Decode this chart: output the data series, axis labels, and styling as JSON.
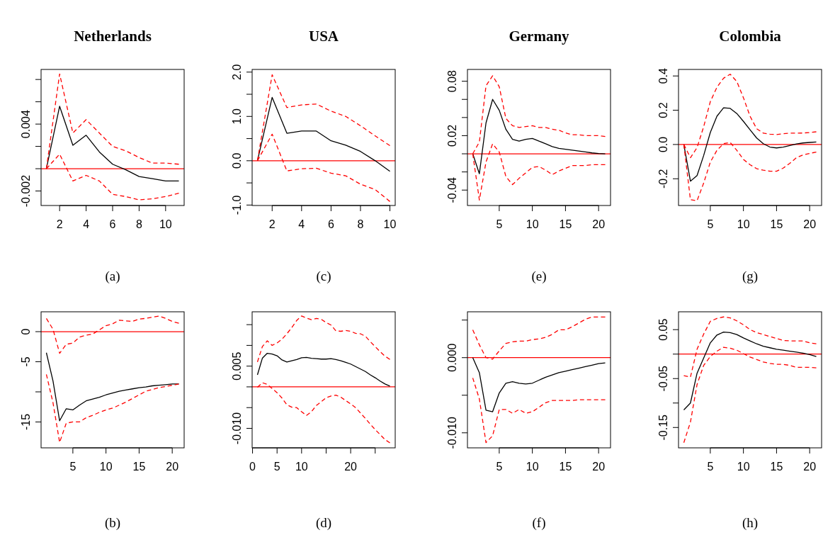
{
  "chart_data": [
    {
      "type": "line",
      "title": "Netherlands",
      "annotations": [
        "(a)"
      ],
      "x": [
        1,
        2,
        3,
        4,
        5,
        6,
        7,
        8,
        9,
        10,
        11
      ],
      "xlim": [
        0.6,
        11.4
      ],
      "xticks": [
        2,
        4,
        6,
        8,
        10
      ],
      "ylim": [
        -0.0033,
        0.0089
      ],
      "yticks": [
        {
          "value": -0.002,
          "label": "-0.002"
        },
        {
          "value": 0,
          "label": null
        },
        {
          "value": 0.002,
          "label": null
        },
        0.004,
        {
          "value": 0.006,
          "label": null
        },
        {
          "value": 0.008,
          "label": null
        }
      ],
      "ref_lines": [
        {
          "axis": "y",
          "value": 0,
          "color": "#ff0000"
        }
      ],
      "series": [
        {
          "color": "#000000",
          "line_style": "solid",
          "values": [
            0,
            0.0056,
            0.0021,
            0.003,
            0.0015,
            0.0004,
            -0.0001,
            -0.0007,
            -0.0009,
            -0.0011,
            -0.0011
          ]
        },
        {
          "color": "#ff0000",
          "line_style": "dashed",
          "values": [
            0,
            0.0085,
            0.0032,
            0.0044,
            0.0032,
            0.002,
            0.0016,
            0.001,
            0.0005,
            0.0005,
            0.0004
          ]
        },
        {
          "color": "#ff0000",
          "line_style": "dashed",
          "values": [
            0,
            0.0013,
            -0.0011,
            -0.0006,
            -0.0011,
            -0.0023,
            -0.0025,
            -0.0028,
            -0.0027,
            -0.0025,
            -0.0022
          ]
        }
      ]
    },
    {
      "type": "line",
      "title": "USA",
      "annotations": [
        "(c)"
      ],
      "x": [
        1,
        2,
        3,
        4,
        5,
        6,
        7,
        8,
        9,
        10
      ],
      "xlim": [
        0.64,
        10.36
      ],
      "xticks": [
        2,
        4,
        6,
        8,
        10
      ],
      "ylim": [
        -1.01,
        2.06
      ],
      "yticks": [
        {
          "value": -1,
          "label": "-1.0"
        },
        {
          "value": -0.5,
          "label": null
        },
        {
          "value": 0,
          "label": "0.0"
        },
        {
          "value": 0.5,
          "label": null
        },
        {
          "value": 1,
          "label": "1.0"
        },
        {
          "value": 1.5,
          "label": null
        },
        {
          "value": 2,
          "label": "2.0"
        }
      ],
      "ref_lines": [
        {
          "axis": "y",
          "value": 0,
          "color": "#ff0000"
        }
      ],
      "series": [
        {
          "color": "#000000",
          "line_style": "solid",
          "values": [
            0,
            1.43,
            0.62,
            0.67,
            0.67,
            0.45,
            0.35,
            0.21,
            0.0,
            -0.24
          ]
        },
        {
          "color": "#ff0000",
          "line_style": "dashed",
          "values": [
            0,
            1.94,
            1.2,
            1.26,
            1.28,
            1.12,
            1.0,
            0.79,
            0.56,
            0.34
          ]
        },
        {
          "color": "#ff0000",
          "line_style": "dashed",
          "values": [
            0,
            0.6,
            -0.23,
            -0.18,
            -0.17,
            -0.28,
            -0.34,
            -0.53,
            -0.65,
            -0.92
          ]
        }
      ]
    },
    {
      "type": "line",
      "title": "Germany",
      "annotations": [
        "(e)"
      ],
      "x": [
        1,
        2,
        3,
        4,
        5,
        6,
        7,
        8,
        9,
        10,
        11,
        12,
        13,
        14,
        15,
        16,
        17,
        18,
        19,
        20,
        21
      ],
      "xlim": [
        0.2,
        21.8
      ],
      "xticks": [
        5,
        10,
        15,
        20
      ],
      "ylim": [
        -0.057,
        0.093
      ],
      "yticks": [
        {
          "value": -0.04,
          "label": "-0.04"
        },
        {
          "value": -0.02,
          "label": null
        },
        {
          "value": 0,
          "label": null
        },
        0.02,
        {
          "value": 0.04,
          "label": null
        },
        {
          "value": 0.06,
          "label": null
        },
        0.08
      ],
      "ref_lines": [
        {
          "axis": "y",
          "value": 0,
          "color": "#ff0000"
        }
      ],
      "series": [
        {
          "color": "#000000",
          "line_style": "solid",
          "values": [
            0,
            -0.022,
            0.034,
            0.06,
            0.048,
            0.027,
            0.016,
            0.014,
            0.016,
            0.017,
            0.014,
            0.011,
            0.008,
            0.006,
            0.005,
            0.004,
            0.003,
            0.002,
            0.001,
            0.0003,
            0
          ]
        },
        {
          "color": "#ff0000",
          "line_style": "dashed",
          "values": [
            0,
            0.013,
            0.075,
            0.086,
            0.074,
            0.039,
            0.031,
            0.029,
            0.03,
            0.031,
            0.029,
            0.029,
            0.027,
            0.026,
            0.023,
            0.021,
            0.021,
            0.02,
            0.02,
            0.02,
            0.019
          ]
        },
        {
          "color": "#ff0000",
          "line_style": "dashed",
          "values": [
            0,
            -0.051,
            -0.009,
            0.011,
            0.002,
            -0.025,
            -0.034,
            -0.027,
            -0.021,
            -0.015,
            -0.014,
            -0.018,
            -0.023,
            -0.019,
            -0.016,
            -0.013,
            -0.013,
            -0.013,
            -0.012,
            -0.012,
            -0.012
          ]
        }
      ]
    },
    {
      "type": "line",
      "title": "Colombia",
      "annotations": [
        "(g)"
      ],
      "x": [
        1,
        2,
        3,
        4,
        5,
        6,
        7,
        8,
        9,
        10,
        11,
        12,
        13,
        14,
        15,
        16,
        17,
        18,
        19,
        20,
        21
      ],
      "xlim": [
        0.2,
        21.8
      ],
      "xticks": [
        5,
        10,
        15,
        20
      ],
      "ylim": [
        -0.356,
        0.438
      ],
      "yticks": [
        -0.2,
        {
          "value": 0,
          "label": "0.0"
        },
        0.2,
        0.4
      ],
      "ref_lines": [
        {
          "axis": "y",
          "value": 0,
          "color": "#ff0000"
        }
      ],
      "series": [
        {
          "color": "#000000",
          "line_style": "solid",
          "values": [
            0,
            -0.214,
            -0.181,
            -0.064,
            0.07,
            0.165,
            0.214,
            0.211,
            0.181,
            0.135,
            0.086,
            0.038,
            0.005,
            -0.015,
            -0.02,
            -0.015,
            -0.006,
            0.003,
            0.009,
            0.012,
            0.015
          ]
        },
        {
          "color": "#ff0000",
          "line_style": "dashed",
          "values": [
            0,
            -0.077,
            -0.018,
            0.104,
            0.25,
            0.334,
            0.387,
            0.41,
            0.368,
            0.273,
            0.165,
            0.092,
            0.066,
            0.06,
            0.058,
            0.063,
            0.066,
            0.066,
            0.067,
            0.07,
            0.074
          ]
        },
        {
          "color": "#ff0000",
          "line_style": "dashed",
          "values": [
            0,
            -0.322,
            -0.328,
            -0.225,
            -0.103,
            -0.034,
            0.005,
            0.012,
            -0.034,
            -0.087,
            -0.118,
            -0.141,
            -0.15,
            -0.156,
            -0.156,
            -0.138,
            -0.11,
            -0.077,
            -0.061,
            -0.052,
            -0.044
          ]
        }
      ]
    },
    {
      "type": "line",
      "annotations": [
        "(b)"
      ],
      "x": [
        1,
        2,
        3,
        4,
        5,
        6,
        7,
        8,
        9,
        10,
        11,
        12,
        13,
        14,
        15,
        16,
        17,
        18,
        19,
        20,
        21
      ],
      "xlim": [
        0.2,
        21.8
      ],
      "xticks": [
        5,
        10,
        15,
        20
      ],
      "ylim": [
        -19.3,
        3.3
      ],
      "yticks": [
        -15,
        {
          "value": -10,
          "label": null
        },
        -5,
        0
      ],
      "ref_lines": [
        {
          "axis": "y",
          "value": 0,
          "color": "#ff0000"
        }
      ],
      "series": [
        {
          "color": "#000000",
          "line_style": "solid",
          "values": [
            -3.5,
            -8.2,
            -14.8,
            -12.8,
            -13.0,
            -12.2,
            -11.5,
            -11.2,
            -10.9,
            -10.5,
            -10.2,
            -9.9,
            -9.7,
            -9.5,
            -9.3,
            -9.2,
            -9.0,
            -8.9,
            -8.8,
            -8.7,
            -8.7
          ]
        },
        {
          "color": "#ff0000",
          "line_style": "dashed",
          "values": [
            2.2,
            0.4,
            -3.6,
            -2.1,
            -1.9,
            -0.9,
            -0.6,
            -0.4,
            0.3,
            1.0,
            1.3,
            1.9,
            1.8,
            1.7,
            2.1,
            2.2,
            2.4,
            2.6,
            2.2,
            1.7,
            1.4
          ]
        },
        {
          "color": "#ff0000",
          "line_style": "dashed",
          "values": [
            -7.1,
            -11.8,
            -18.4,
            -15.2,
            -15.0,
            -15.0,
            -14.3,
            -13.9,
            -13.4,
            -13.0,
            -12.7,
            -12.2,
            -11.7,
            -11.1,
            -10.5,
            -9.9,
            -9.6,
            -9.3,
            -9.1,
            -8.9,
            -8.7
          ]
        }
      ]
    },
    {
      "type": "line",
      "annotations": [
        "(d)"
      ],
      "x": [
        1,
        2,
        3,
        4,
        5,
        6,
        7,
        8,
        9,
        10,
        11,
        12,
        13,
        14,
        15,
        16,
        17,
        18,
        19,
        20,
        21,
        22,
        23,
        24,
        25,
        26,
        27,
        28
      ],
      "xlim": [
        -0.08,
        29.08
      ],
      "xticks": [
        0,
        5,
        10,
        {
          "value": 15,
          "label": null
        },
        20,
        {
          "value": 25,
          "label": null
        }
      ],
      "ylim": [
        -0.0147,
        0.0181
      ],
      "yticks": [
        {
          "value": -0.01,
          "label": "-0.010"
        },
        {
          "value": -0.005,
          "label": null
        },
        {
          "value": 0,
          "label": null
        },
        0.005,
        {
          "value": 0.01,
          "label": null
        },
        {
          "value": 0.015,
          "label": null
        }
      ],
      "ref_lines": [
        {
          "axis": "y",
          "value": 0,
          "color": "#ff0000"
        }
      ],
      "series": [
        {
          "color": "#000000",
          "line_style": "solid",
          "values": [
            0.0029,
            0.0069,
            0.0081,
            0.0079,
            0.0075,
            0.0065,
            0.006,
            0.0063,
            0.0066,
            0.007,
            0.0071,
            0.0069,
            0.0068,
            0.0067,
            0.0067,
            0.0068,
            0.0066,
            0.0063,
            0.0059,
            0.0055,
            0.0049,
            0.0043,
            0.0037,
            0.0029,
            0.0022,
            0.0014,
            0.0007,
            0.0002
          ]
        },
        {
          "color": "#ff0000",
          "line_style": "dashed",
          "values": [
            0.006,
            0.0097,
            0.0111,
            0.01,
            0.0106,
            0.0115,
            0.0128,
            0.0143,
            0.016,
            0.0171,
            0.0166,
            0.0162,
            0.0165,
            0.0163,
            0.0155,
            0.0149,
            0.0135,
            0.0134,
            0.0136,
            0.0134,
            0.0129,
            0.0128,
            0.0122,
            0.0109,
            0.0097,
            0.0085,
            0.0074,
            0.0066
          ]
        },
        {
          "color": "#ff0000",
          "line_style": "dashed",
          "values": [
            -0.0001,
            0.001,
            0.0006,
            -0.0004,
            -0.0014,
            -0.0027,
            -0.0043,
            -0.0049,
            -0.005,
            -0.006,
            -0.0069,
            -0.006,
            -0.0045,
            -0.0036,
            -0.0026,
            -0.0022,
            -0.002,
            -0.0025,
            -0.0033,
            -0.0041,
            -0.005,
            -0.0063,
            -0.0076,
            -0.009,
            -0.0103,
            -0.0115,
            -0.0127,
            -0.0135
          ]
        }
      ]
    },
    {
      "type": "line",
      "annotations": [
        "(f)"
      ],
      "x": [
        1,
        2,
        3,
        4,
        5,
        6,
        7,
        8,
        9,
        10,
        11,
        12,
        13,
        14,
        15,
        16,
        17,
        18,
        19,
        20,
        21
      ],
      "xlim": [
        0.2,
        21.8
      ],
      "xticks": [
        5,
        10,
        15,
        20
      ],
      "ylim": [
        -0.012,
        0.0061
      ],
      "yticks": [
        {
          "value": -0.01,
          "label": "-0.010"
        },
        {
          "value": -0.005,
          "label": null
        },
        {
          "value": 0,
          "label": "0.000"
        },
        {
          "value": 0.005,
          "label": null
        }
      ],
      "ref_lines": [
        {
          "axis": "y",
          "value": 0,
          "color": "#ff0000"
        }
      ],
      "series": [
        {
          "color": "#000000",
          "line_style": "solid",
          "values": [
            0,
            -0.002,
            -0.007,
            -0.0072,
            -0.0047,
            -0.0034,
            -0.0032,
            -0.0034,
            -0.0035,
            -0.0034,
            -0.003,
            -0.0026,
            -0.0023,
            -0.002,
            -0.0018,
            -0.0016,
            -0.0014,
            -0.0012,
            -0.001,
            -0.0008,
            -0.0007
          ]
        },
        {
          "color": "#ff0000",
          "line_style": "dashed",
          "values": [
            0.0037,
            0.0017,
            0,
            -0.0002,
            0.0009,
            0.0019,
            0.0021,
            0.0022,
            0.0022,
            0.0024,
            0.0025,
            0.0027,
            0.0031,
            0.0037,
            0.0037,
            0.0041,
            0.0046,
            0.0051,
            0.0054,
            0.0054,
            0.0054
          ]
        },
        {
          "color": "#ff0000",
          "line_style": "dashed",
          "values": [
            -0.0027,
            -0.0055,
            -0.0113,
            -0.0104,
            -0.0069,
            -0.0069,
            -0.0074,
            -0.0069,
            -0.0074,
            -0.0072,
            -0.0066,
            -0.006,
            -0.0057,
            -0.0057,
            -0.0057,
            -0.0057,
            -0.0056,
            -0.0056,
            -0.0056,
            -0.0056,
            -0.0056
          ]
        }
      ]
    },
    {
      "type": "line",
      "annotations": [
        "(h)"
      ],
      "x": [
        1,
        2,
        3,
        4,
        5,
        6,
        7,
        8,
        9,
        10,
        11,
        12,
        13,
        14,
        15,
        16,
        17,
        18,
        19,
        20,
        21
      ],
      "xlim": [
        0.2,
        21.8
      ],
      "xticks": [
        5,
        10,
        15,
        20
      ],
      "ylim": [
        -0.1916,
        0.0865
      ],
      "yticks": [
        -0.15,
        {
          "value": -0.1,
          "label": null
        },
        -0.05,
        {
          "value": 0,
          "label": null
        },
        0.05
      ],
      "ref_lines": [
        {
          "axis": "y",
          "value": 0,
          "color": "#ff0000"
        }
      ],
      "series": [
        {
          "color": "#000000",
          "line_style": "solid",
          "values": [
            -0.114,
            -0.1,
            -0.039,
            -0.008,
            0.023,
            0.039,
            0.045,
            0.044,
            0.04,
            0.033,
            0.027,
            0.021,
            0.016,
            0.013,
            0.01,
            0.008,
            0.006,
            0.004,
            0.002,
            -0.001,
            -0.005
          ]
        },
        {
          "color": "#ff0000",
          "line_style": "dashed",
          "values": [
            -0.044,
            -0.047,
            0.01,
            0.041,
            0.067,
            0.073,
            0.076,
            0.074,
            0.068,
            0.06,
            0.05,
            0.044,
            0.04,
            0.036,
            0.032,
            0.028,
            0.027,
            0.027,
            0.027,
            0.023,
            0.021
          ]
        },
        {
          "color": "#ff0000",
          "line_style": "dashed",
          "values": [
            -0.181,
            -0.139,
            -0.062,
            -0.023,
            -0.005,
            0.006,
            0.014,
            0.012,
            0.008,
            0.001,
            -0.006,
            -0.011,
            -0.016,
            -0.019,
            -0.021,
            -0.021,
            -0.023,
            -0.027,
            -0.027,
            -0.027,
            -0.028
          ]
        }
      ]
    }
  ]
}
